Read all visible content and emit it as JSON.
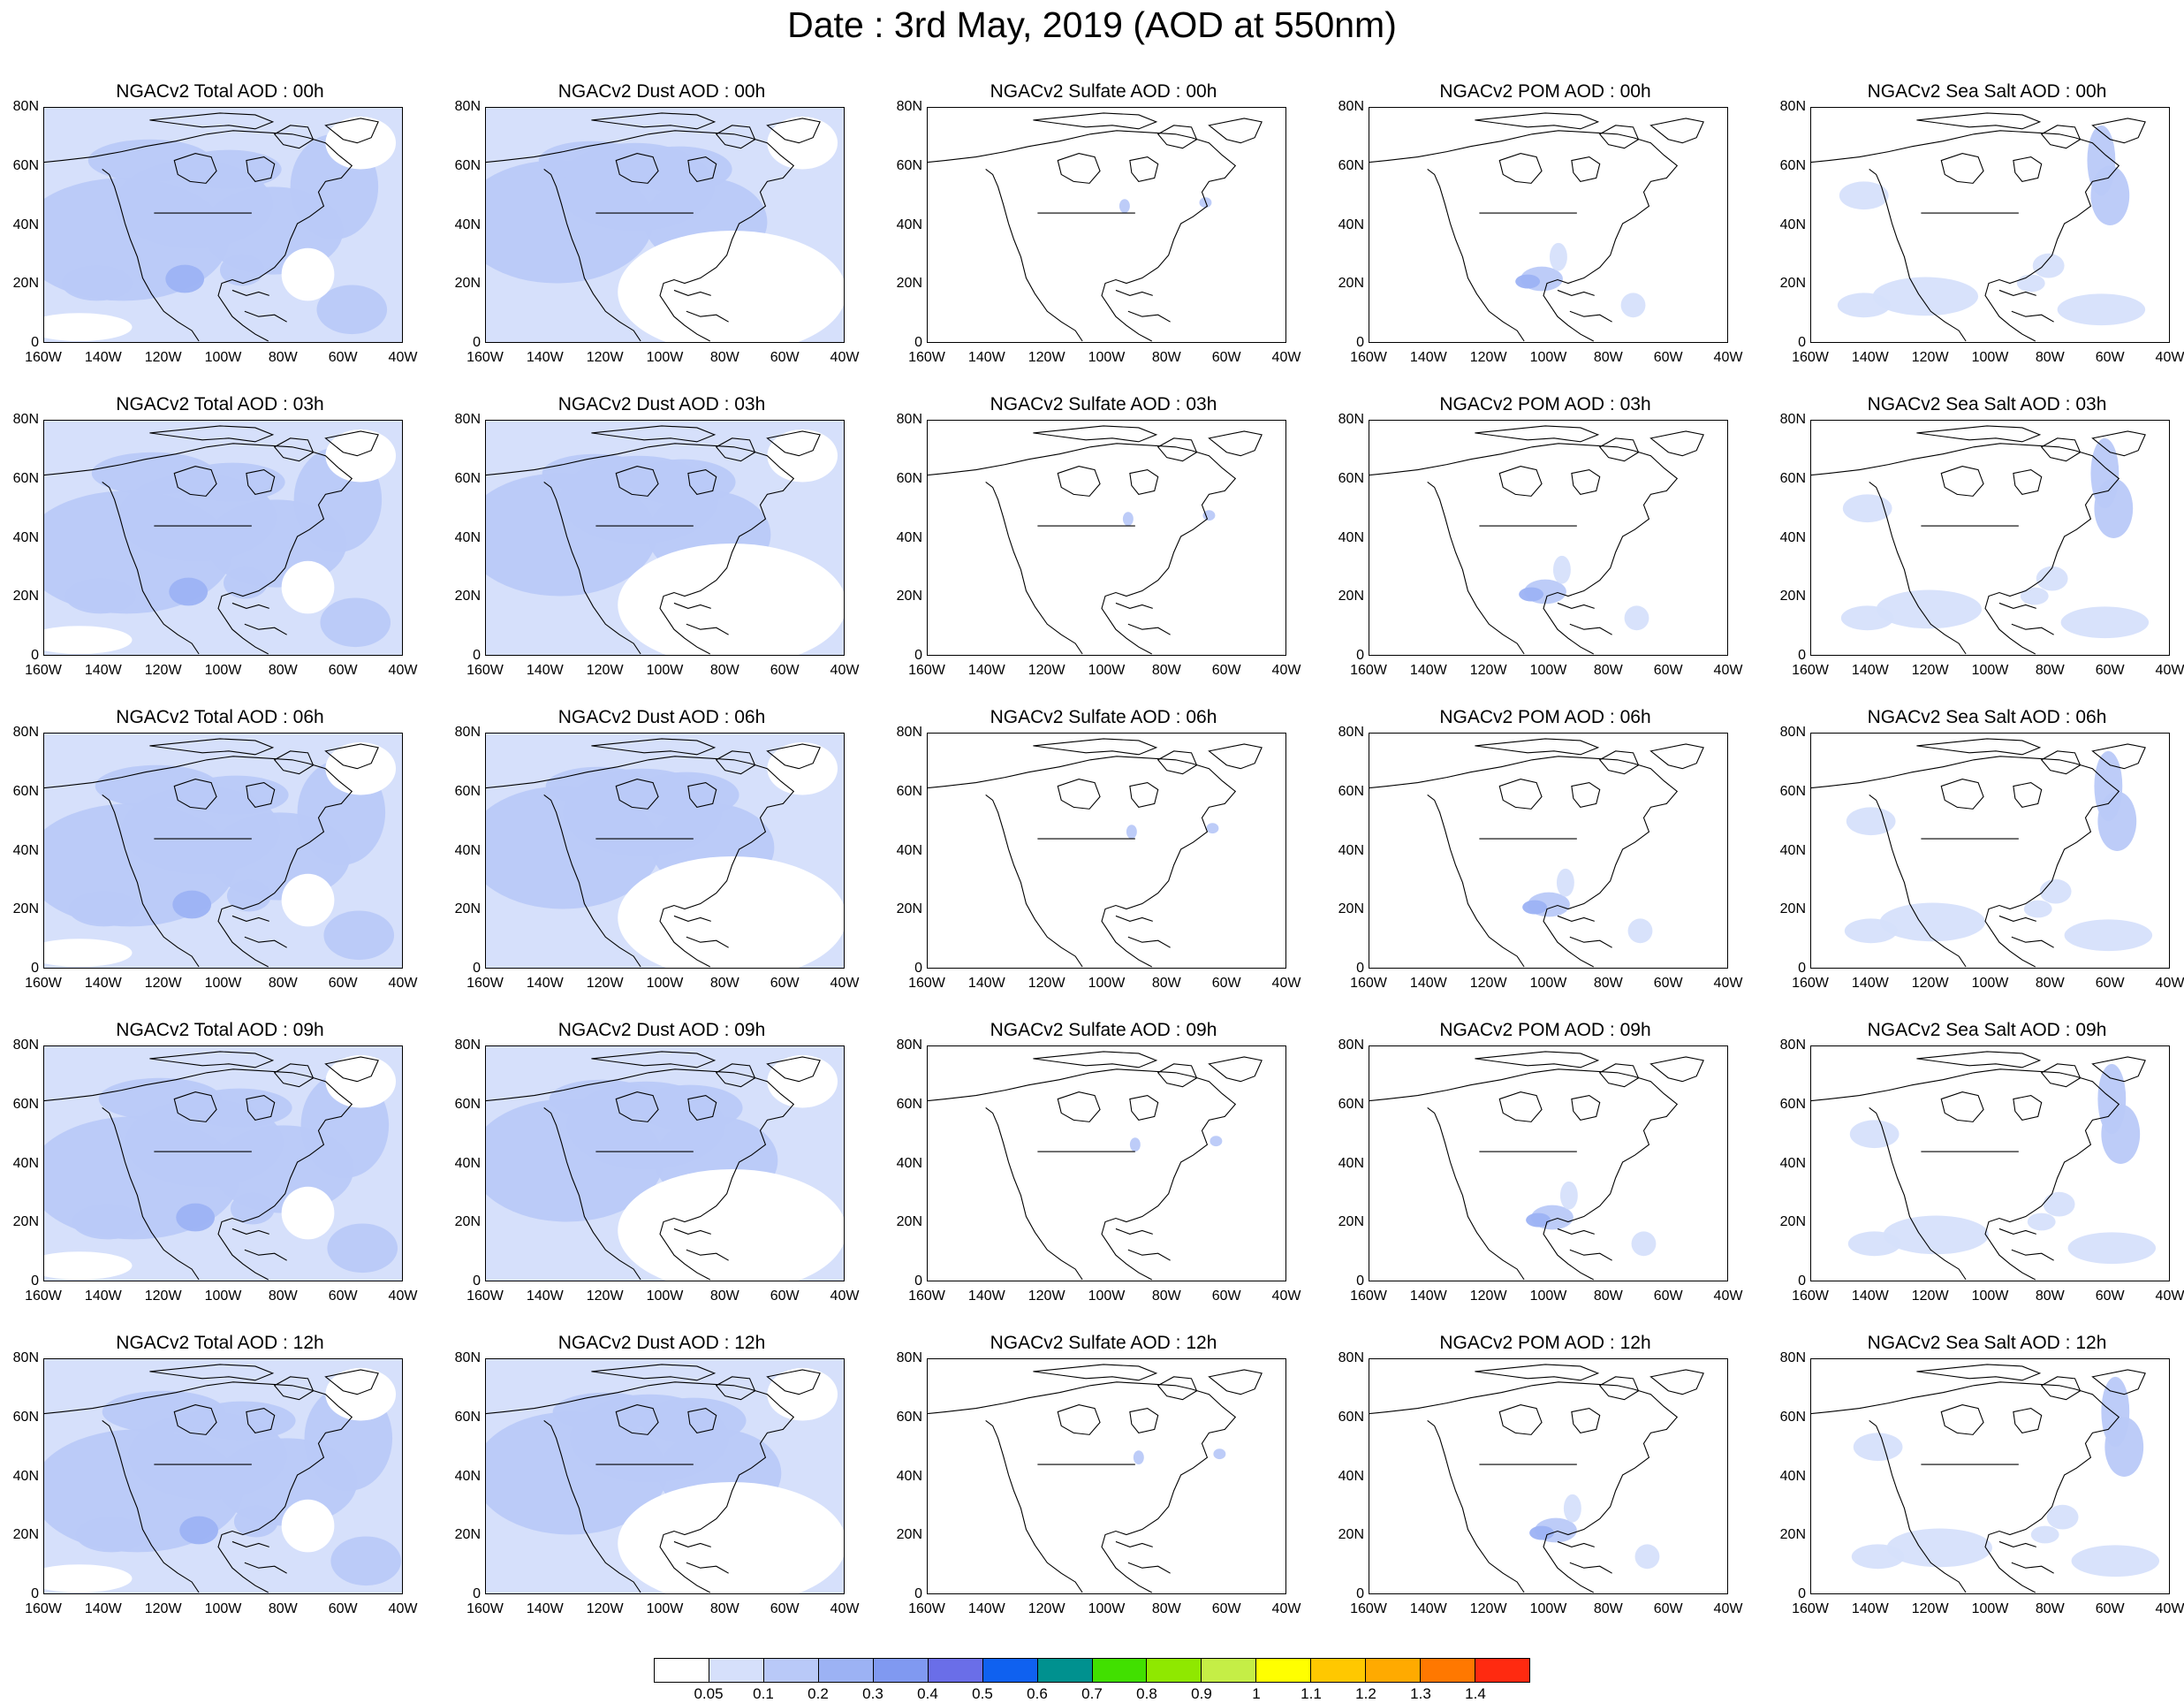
{
  "title": "Date : 3rd May, 2019 (AOD at 550nm)",
  "panel_titles": [
    [
      "NGACv2 Total AOD : 00h",
      "NGACv2 Dust AOD : 00h",
      "NGACv2 Sulfate AOD : 00h",
      "NGACv2 POM AOD : 00h",
      "NGACv2 Sea Salt AOD : 00h"
    ],
    [
      "NGACv2 Total AOD : 03h",
      "NGACv2 Dust AOD : 03h",
      "NGACv2 Sulfate AOD : 03h",
      "NGACv2 POM AOD : 03h",
      "NGACv2 Sea Salt AOD : 03h"
    ],
    [
      "NGACv2 Total AOD : 06h",
      "NGACv2 Dust AOD : 06h",
      "NGACv2 Sulfate AOD : 06h",
      "NGACv2 POM AOD : 06h",
      "NGACv2 Sea Salt AOD : 06h"
    ],
    [
      "NGACv2 Total AOD : 09h",
      "NGACv2 Dust AOD : 09h",
      "NGACv2 Sulfate AOD : 09h",
      "NGACv2 POM AOD : 09h",
      "NGACv2 Sea Salt  AOD : 09h"
    ],
    [
      "NGACv2 Total AOD  : 12h",
      "NGACv2 Dust AOD : 12h",
      "NGACv2 Sulfate AOD : 12h",
      "NGACv2 POM  AOD : 12h",
      "NGACv2 Sea Salt  AOD : 12h"
    ]
  ],
  "lat_ticks": [
    "80N",
    "60N",
    "40N",
    "20N",
    "0"
  ],
  "lon_ticks": [
    "160W",
    "140W",
    "120W",
    "100W",
    "80W",
    "60W",
    "40W"
  ],
  "colorbar": {
    "colors": [
      "#ffffff",
      "#d6e0fb",
      "#b9c9f8",
      "#9cb2f4",
      "#8099f1",
      "#6a6ee8",
      "#0f61f0",
      "#00918f",
      "#41e000",
      "#8fe800",
      "#c5ee46",
      "#ffff00",
      "#ffc800",
      "#ffaa00",
      "#ff7800",
      "#ff2a10"
    ],
    "labels": [
      "0.05",
      "0.1",
      "0.2",
      "0.3",
      "0.4",
      "0.5",
      "0.6",
      "0.7",
      "0.8",
      "0.9",
      "1",
      "1.1",
      "1.2",
      "1.3",
      "1.4"
    ]
  },
  "map_extent": {
    "lon": [
      -160,
      -40
    ],
    "lat": [
      0,
      80
    ]
  }
}
